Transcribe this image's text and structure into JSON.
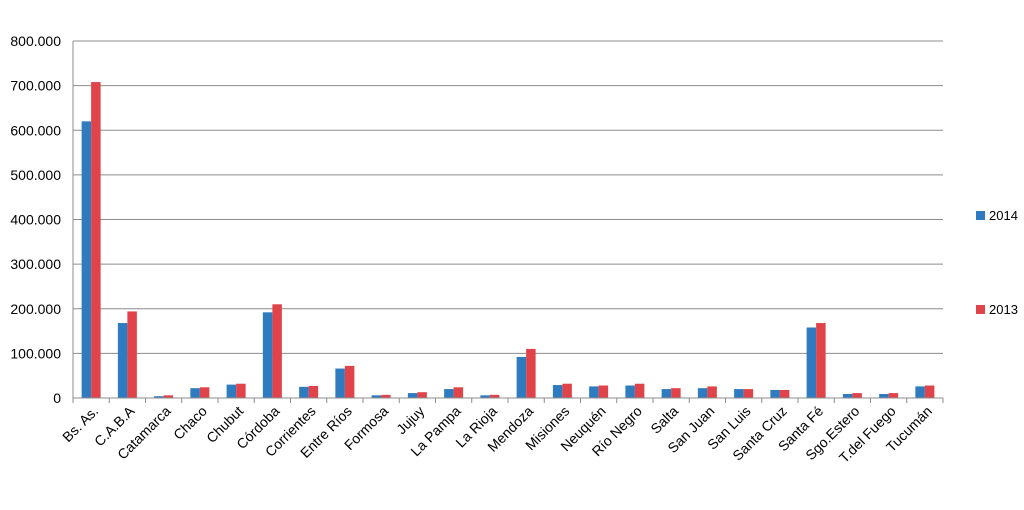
{
  "chart_data": {
    "type": "bar",
    "categories": [
      "Bs. As.",
      "C.A.B.A",
      "Catamarca",
      "Chaco",
      "Chubut",
      "Córdoba",
      "Corrientes",
      "Entre Ríos",
      "Formosa",
      "Jujuy",
      "La Pampa",
      "La Rioja",
      "Mendoza",
      "Misiones",
      "Neuquén",
      "Río Negro",
      "Salta",
      "San Juan",
      "San Luis",
      "Santa Cruz",
      "Santa Fé",
      "Sgo.Estero",
      "T.del Fuego",
      "Tucumán"
    ],
    "series": [
      {
        "name": "2014",
        "color": "#2e7bbf",
        "values": [
          620000,
          168000,
          4000,
          22000,
          30000,
          192000,
          25000,
          66000,
          6000,
          11000,
          20000,
          6000,
          92000,
          29000,
          26000,
          28000,
          20000,
          22000,
          20000,
          18000,
          158000,
          9000,
          9000,
          26000
        ]
      },
      {
        "name": "2013",
        "color": "#e0444a",
        "values": [
          708000,
          194000,
          6000,
          24000,
          32000,
          210000,
          27000,
          72000,
          7000,
          13000,
          24000,
          7000,
          110000,
          32000,
          28000,
          32000,
          22000,
          26000,
          20000,
          18000,
          168000,
          11000,
          11000,
          28000
        ]
      }
    ],
    "yticks": [
      "0",
      "100.000",
      "200.000",
      "300.000",
      "400.000",
      "500.000",
      "600.000",
      "700.000",
      "800.000"
    ],
    "ylim": [
      0,
      800000
    ],
    "title": "",
    "xlabel": "",
    "ylabel": "",
    "grid": true,
    "legend": "right"
  }
}
